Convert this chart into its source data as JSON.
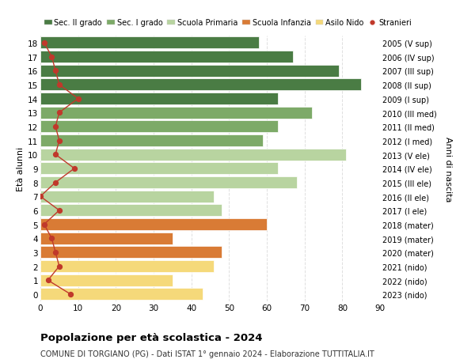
{
  "ages": [
    0,
    1,
    2,
    3,
    4,
    5,
    6,
    7,
    8,
    9,
    10,
    11,
    12,
    13,
    14,
    15,
    16,
    17,
    18
  ],
  "bar_values": [
    43,
    35,
    46,
    48,
    35,
    60,
    48,
    46,
    68,
    63,
    81,
    59,
    63,
    72,
    63,
    85,
    79,
    67,
    58
  ],
  "stranieri": [
    8,
    2,
    5,
    4,
    3,
    1,
    5,
    0,
    4,
    9,
    4,
    5,
    4,
    5,
    10,
    5,
    4,
    3,
    1
  ],
  "right_labels": [
    "2023 (nido)",
    "2022 (nido)",
    "2021 (nido)",
    "2020 (mater)",
    "2019 (mater)",
    "2018 (mater)",
    "2017 (I ele)",
    "2016 (II ele)",
    "2015 (III ele)",
    "2014 (IV ele)",
    "2013 (V ele)",
    "2012 (I med)",
    "2011 (II med)",
    "2010 (III med)",
    "2009 (I sup)",
    "2008 (II sup)",
    "2007 (III sup)",
    "2006 (IV sup)",
    "2005 (V sup)"
  ],
  "bar_colors_by_age": [
    "#f5d97a",
    "#f5d97a",
    "#f5d97a",
    "#d97b35",
    "#d97b35",
    "#d97b35",
    "#b8d4a0",
    "#b8d4a0",
    "#b8d4a0",
    "#b8d4a0",
    "#b8d4a0",
    "#7daa68",
    "#7daa68",
    "#7daa68",
    "#4a7c44",
    "#4a7c44",
    "#4a7c44",
    "#4a7c44",
    "#4a7c44"
  ],
  "stranieri_color": "#c0392b",
  "ylabel_left": "Età alunni",
  "ylabel_right": "Anni di nascita",
  "xlim": [
    0,
    90
  ],
  "xticks": [
    0,
    10,
    20,
    30,
    40,
    50,
    60,
    70,
    80,
    90
  ],
  "legend_labels": [
    "Sec. II grado",
    "Sec. I grado",
    "Scuola Primaria",
    "Scuola Infanzia",
    "Asilo Nido",
    "Stranieri"
  ],
  "legend_colors": [
    "#4a7c44",
    "#7daa68",
    "#b8d4a0",
    "#d97b35",
    "#f5d97a",
    "#c0392b"
  ],
  "title_main": "Popolazione per età scolastica - 2024",
  "title_sub": "COMUNE DI TORGIANO (PG) - Dati ISTAT 1° gennaio 2024 - Elaborazione TUTTITALIA.IT",
  "background_color": "#ffffff",
  "grid_color": "#e0e0e0"
}
